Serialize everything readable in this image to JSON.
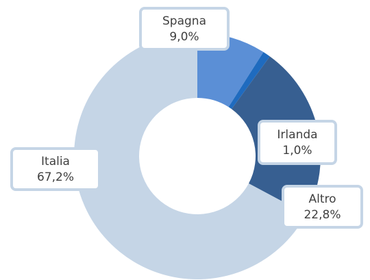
{
  "chart_data": {
    "type": "donut",
    "categories": [
      "Spagna",
      "Irlanda",
      "Altro",
      "Italia"
    ],
    "values": [
      9.0,
      1.0,
      22.8,
      67.2
    ],
    "value_labels": [
      "9,0%",
      "1,0%",
      "22,8%",
      "67,2%"
    ],
    "colors": [
      "#5b8fd6",
      "#1f6bbf",
      "#375f91",
      "#c5d5e6"
    ]
  }
}
